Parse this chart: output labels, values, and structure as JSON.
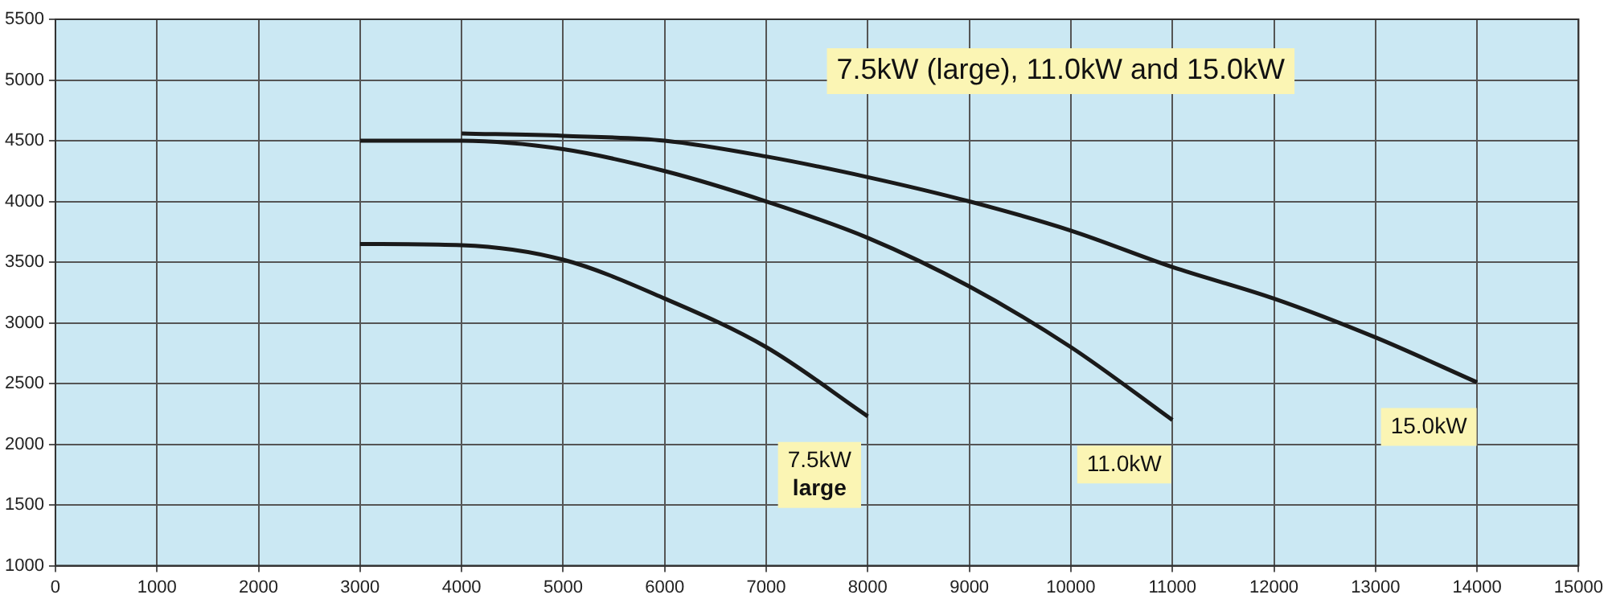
{
  "chart_data": {
    "type": "line",
    "title": "7.5kW (large), 11.0kW and 15.0kW",
    "xlim": [
      0,
      15000
    ],
    "xticks": [
      0,
      1000,
      2000,
      3000,
      4000,
      5000,
      6000,
      7000,
      8000,
      9000,
      10000,
      11000,
      12000,
      13000,
      14000,
      15000
    ],
    "ylim": [
      1000,
      5500
    ],
    "yticks": [
      1000,
      1500,
      2000,
      2500,
      3000,
      3500,
      4000,
      4500,
      5000,
      5500
    ],
    "grid": true,
    "legend": false,
    "marker": "none",
    "line_style": "solid",
    "series": [
      {
        "name": "7.5kW large",
        "color": "#1a1a1a",
        "x": [
          3000,
          4000,
          5000,
          6000,
          7000,
          8000
        ],
        "values": [
          3650,
          3640,
          3520,
          3200,
          2800,
          2230
        ]
      },
      {
        "name": "11.0kW",
        "color": "#1a1a1a",
        "x": [
          3000,
          4000,
          5000,
          6000,
          7000,
          8000,
          9000,
          10000,
          11000
        ],
        "values": [
          4500,
          4500,
          4430,
          4250,
          4000,
          3700,
          3300,
          2800,
          2200
        ]
      },
      {
        "name": "15.0kW",
        "color": "#1a1a1a",
        "x": [
          4000,
          5000,
          6000,
          7000,
          8000,
          9000,
          10000,
          11000,
          12000,
          13000,
          14000
        ],
        "values": [
          4560,
          4540,
          4500,
          4370,
          4200,
          4000,
          3760,
          3460,
          3200,
          2880,
          2510
        ]
      }
    ]
  }
}
